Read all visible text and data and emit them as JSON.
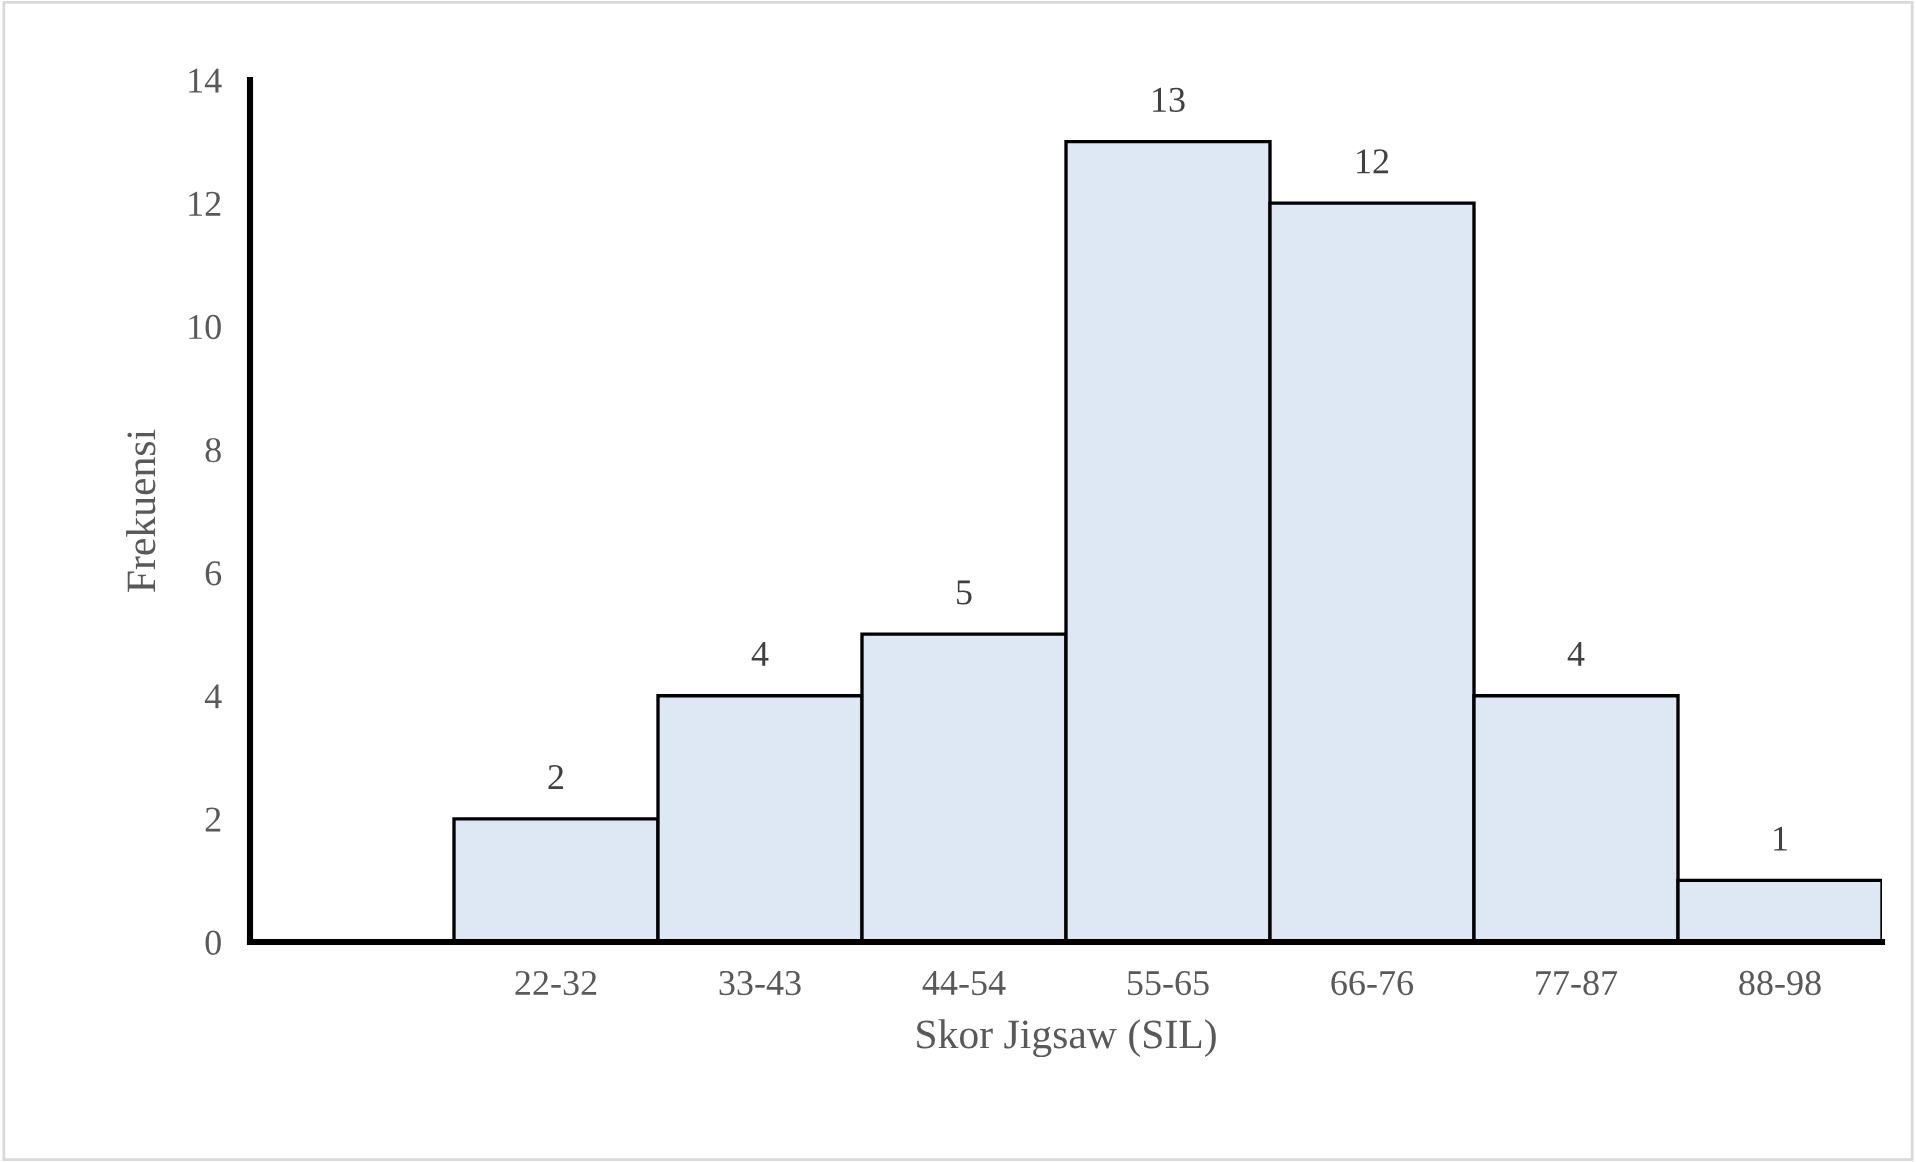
{
  "chart_data": {
    "type": "bar",
    "xlabel": "Skor Jigsaw (SIL)",
    "ylabel": "Frekuensi",
    "categories": [
      null,
      "22-32",
      "33-43",
      "44-54",
      "55-65",
      "66-76",
      "77-87",
      "88-98"
    ],
    "values": [
      null,
      2,
      4,
      5,
      13,
      12,
      4,
      1
    ],
    "color": "#dee8f4",
    "ylim": [
      0,
      14
    ],
    "yticks": [
      0,
      2,
      4,
      6,
      8,
      10,
      12,
      14
    ],
    "grid": false,
    "legend": false,
    "data_labels": true
  }
}
